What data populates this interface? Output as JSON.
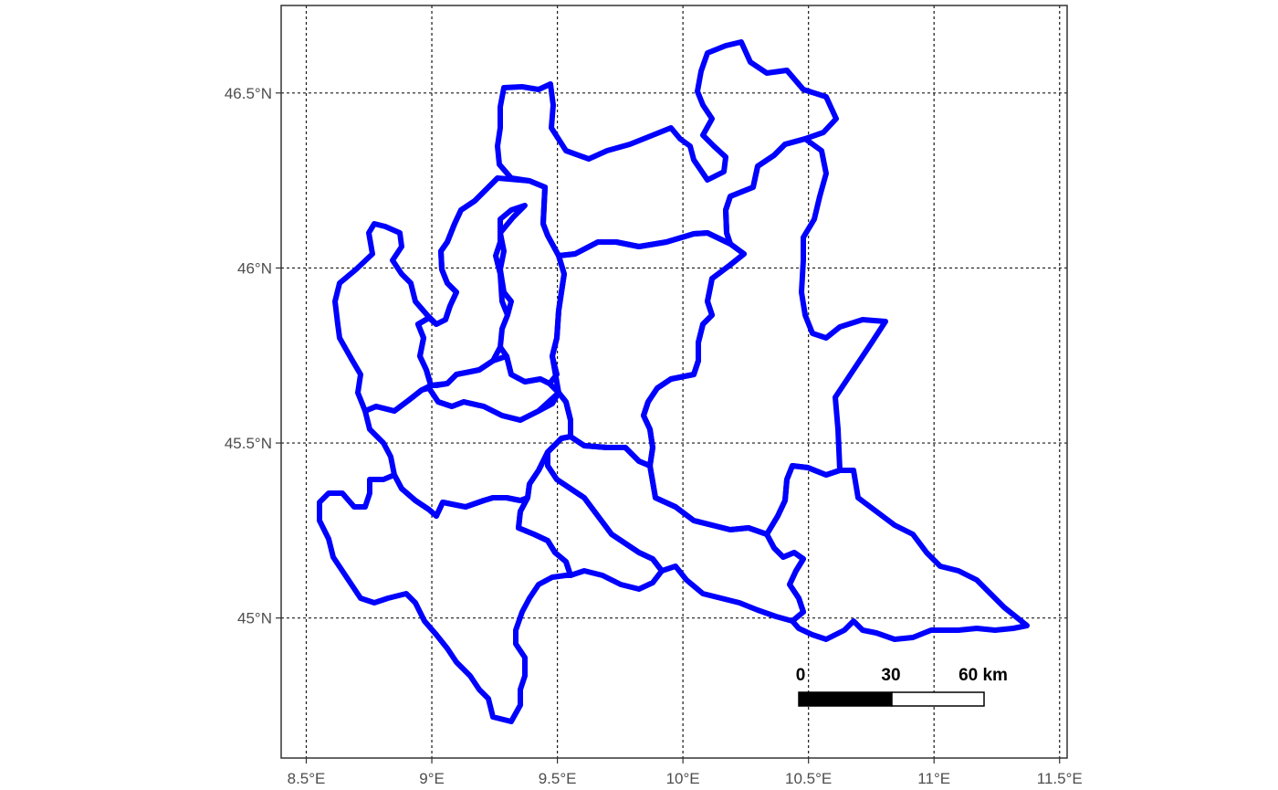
{
  "map": {
    "type": "choropleth-outline",
    "outline_color": "#0000ff",
    "panel_border": "#333333",
    "grid": {
      "style": "dotted",
      "visible": true
    },
    "x_axis": {
      "ticks": [
        {
          "value": 8.5,
          "label": "8.5°E"
        },
        {
          "value": 9.0,
          "label": "9°E"
        },
        {
          "value": 9.5,
          "label": "9.5°E"
        },
        {
          "value": 10.0,
          "label": "10°E"
        },
        {
          "value": 10.5,
          "label": "10.5°E"
        },
        {
          "value": 11.0,
          "label": "11°E"
        },
        {
          "value": 11.5,
          "label": "11.5°E"
        }
      ],
      "range": [
        8.4,
        11.53
      ]
    },
    "y_axis": {
      "ticks": [
        {
          "value": 45.0,
          "label": "45°N"
        },
        {
          "value": 45.5,
          "label": "45.5°N"
        },
        {
          "value": 46.0,
          "label": "46°N"
        },
        {
          "value": 46.5,
          "label": "46.5°N"
        }
      ],
      "range": [
        44.6,
        46.75
      ]
    },
    "scale_bar": {
      "labels": [
        "0",
        "30",
        "60 km"
      ],
      "fill_colors": [
        "#000000",
        "#ffffff"
      ]
    }
  }
}
